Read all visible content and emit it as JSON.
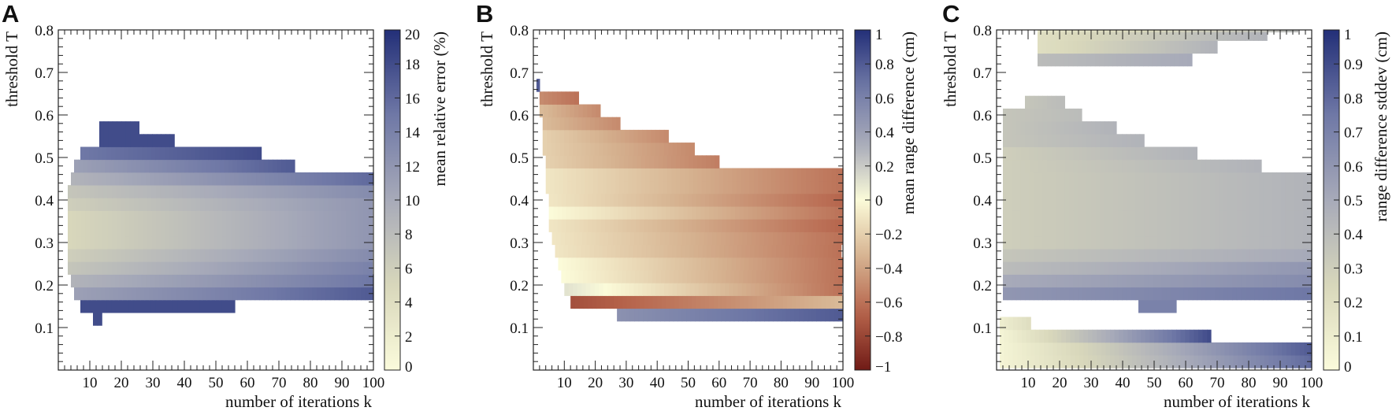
{
  "colors": {
    "sequential": [
      "#fbfbdb",
      "#d8d7bb",
      "#a7aab9",
      "#6f78a6",
      "#232f78"
    ],
    "diverging": [
      "#701b16",
      "#b5624a",
      "#d6b391",
      "#fbfbd9",
      "#a7aab9",
      "#6f78a6",
      "#232f78"
    ],
    "frame": "#222222"
  },
  "chart_data": [
    {
      "type": "heatmap",
      "panel": "A",
      "xlabel": "number of iterations k",
      "ylabel": "threshold T",
      "xlim": [
        0,
        100
      ],
      "ylim": [
        0,
        0.8
      ],
      "xticks": [
        10,
        20,
        30,
        40,
        50,
        60,
        70,
        80,
        90,
        100
      ],
      "yticks": [
        0.1,
        0.2,
        0.3,
        0.4,
        0.5,
        0.6,
        0.7,
        0.8
      ],
      "colorbar": {
        "label": "mean relative error (%)",
        "range": [
          0,
          20
        ],
        "ticks": [
          0,
          2,
          4,
          6,
          8,
          10,
          12,
          14,
          16,
          18,
          20
        ],
        "palette": "sequential"
      },
      "rows": [
        {
          "t": 0.12,
          "ranges": [
            [
              11,
              14
            ]
          ],
          "values": [
            18,
            18
          ]
        },
        {
          "t": 0.15,
          "ranges": [
            [
              7,
              56
            ]
          ],
          "values": [
            18,
            18
          ]
        },
        {
          "t": 0.18,
          "ranges": [
            [
              5,
              100
            ]
          ],
          "values": [
            11,
            17
          ]
        },
        {
          "t": 0.21,
          "ranges": [
            [
              4,
              100
            ]
          ],
          "values": [
            9,
            15
          ]
        },
        {
          "t": 0.24,
          "ranges": [
            [
              3,
              100
            ]
          ],
          "values": [
            7,
            14
          ]
        },
        {
          "t": 0.27,
          "ranges": [
            [
              3,
              100
            ]
          ],
          "values": [
            6,
            13
          ]
        },
        {
          "t": 0.3,
          "ranges": [
            [
              3,
              100
            ]
          ],
          "values": [
            5,
            12
          ]
        },
        {
          "t": 0.33,
          "ranges": [
            [
              3,
              100
            ]
          ],
          "values": [
            5,
            12
          ]
        },
        {
          "t": 0.36,
          "ranges": [
            [
              3,
              100
            ]
          ],
          "values": [
            5,
            12
          ]
        },
        {
          "t": 0.39,
          "ranges": [
            [
              3,
              100
            ]
          ],
          "values": [
            6,
            12
          ]
        },
        {
          "t": 0.42,
          "ranges": [
            [
              3,
              100
            ]
          ],
          "values": [
            7,
            13
          ]
        },
        {
          "t": 0.45,
          "ranges": [
            [
              4,
              100
            ]
          ],
          "values": [
            9,
            16
          ]
        },
        {
          "t": 0.48,
          "ranges": [
            [
              5,
              75
            ]
          ],
          "values": [
            11,
            17
          ]
        },
        {
          "t": 0.51,
          "ranges": [
            [
              7,
              65
            ]
          ],
          "values": [
            15,
            18
          ]
        },
        {
          "t": 0.54,
          "ranges": [
            [
              13,
              37
            ]
          ],
          "values": [
            18,
            18
          ]
        },
        {
          "t": 0.57,
          "ranges": [
            [
              13,
              26
            ]
          ],
          "values": [
            18,
            18
          ]
        }
      ]
    },
    {
      "type": "heatmap",
      "panel": "B",
      "xlabel": "number of iterations k",
      "ylabel": "threshold T",
      "xlim": [
        0,
        100
      ],
      "ylim": [
        0,
        0.8
      ],
      "xticks": [
        10,
        20,
        30,
        40,
        50,
        60,
        70,
        80,
        90,
        100
      ],
      "yticks": [
        0.1,
        0.2,
        0.3,
        0.4,
        0.5,
        0.6,
        0.7,
        0.8
      ],
      "colorbar": {
        "label": "mean range difference (cm)",
        "range": [
          -1,
          1
        ],
        "ticks": [
          -1,
          -0.8,
          -0.6,
          -0.4,
          -0.2,
          0,
          0.2,
          0.4,
          0.6,
          0.8,
          1
        ],
        "palette": "diverging"
      },
      "rows": [
        {
          "t": 0.13,
          "ranges": [
            [
              27,
              100
            ]
          ],
          "values": [
            0.5,
            0.8
          ]
        },
        {
          "t": 0.16,
          "ranges": [
            [
              12,
              100
            ]
          ],
          "values": [
            -0.75,
            -0.3
          ]
        },
        {
          "t": 0.19,
          "ranges": [
            [
              10,
              100
            ]
          ],
          "values": [
            0.1,
            -0.6
          ]
        },
        {
          "t": 0.22,
          "ranges": [
            [
              9,
              100
            ]
          ],
          "values": [
            0.0,
            -0.6
          ]
        },
        {
          "t": 0.25,
          "ranges": [
            [
              8,
              100
            ]
          ],
          "values": [
            0.0,
            -0.6
          ]
        },
        {
          "t": 0.28,
          "ranges": [
            [
              7,
              100
            ]
          ],
          "values": [
            -0.1,
            -0.6
          ]
        },
        {
          "t": 0.31,
          "ranges": [
            [
              6,
              100
            ]
          ],
          "values": [
            -0.1,
            -0.6
          ]
        },
        {
          "t": 0.34,
          "ranges": [
            [
              5,
              100
            ]
          ],
          "values": [
            -0.1,
            -0.65
          ]
        },
        {
          "t": 0.37,
          "ranges": [
            [
              5,
              100
            ]
          ],
          "values": [
            0.0,
            -0.6
          ]
        },
        {
          "t": 0.4,
          "ranges": [
            [
              5,
              100
            ]
          ],
          "values": [
            -0.1,
            -0.65
          ]
        },
        {
          "t": 0.43,
          "ranges": [
            [
              4,
              100
            ]
          ],
          "values": [
            -0.1,
            -0.6
          ]
        },
        {
          "t": 0.46,
          "ranges": [
            [
              4,
              100
            ]
          ],
          "values": [
            -0.1,
            -0.6
          ]
        },
        {
          "t": 0.49,
          "ranges": [
            [
              4,
              60
            ]
          ],
          "values": [
            -0.2,
            -0.55
          ]
        },
        {
          "t": 0.52,
          "ranges": [
            [
              3,
              52
            ]
          ],
          "values": [
            -0.2,
            -0.5
          ]
        },
        {
          "t": 0.55,
          "ranges": [
            [
              3,
              44
            ]
          ],
          "values": [
            -0.2,
            -0.5
          ]
        },
        {
          "t": 0.58,
          "ranges": [
            [
              3,
              28
            ]
          ],
          "values": [
            -0.3,
            -0.5
          ]
        },
        {
          "t": 0.61,
          "ranges": [
            [
              2,
              22
            ]
          ],
          "values": [
            -0.3,
            -0.5
          ]
        },
        {
          "t": 0.64,
          "ranges": [
            [
              2,
              15
            ]
          ],
          "values": [
            -0.5,
            -0.6
          ]
        },
        {
          "t": 0.67,
          "ranges": [
            [
              1,
              2
            ]
          ],
          "values": [
            0.8,
            0.8
          ]
        }
      ]
    },
    {
      "type": "heatmap",
      "panel": "C",
      "xlabel": "number of iterations k",
      "ylabel": "threshold T",
      "xlim": [
        0,
        100
      ],
      "ylim": [
        0,
        0.8
      ],
      "xticks": [
        10,
        20,
        30,
        40,
        50,
        60,
        70,
        80,
        90,
        100
      ],
      "yticks": [
        0.1,
        0.2,
        0.3,
        0.4,
        0.5,
        0.6,
        0.7,
        0.8
      ],
      "colorbar": {
        "label": "range difference stddev (cm)",
        "range": [
          0,
          1
        ],
        "ticks": [
          0,
          0.1,
          0.2,
          0.3,
          0.4,
          0.5,
          0.6,
          0.7,
          0.8,
          0.9,
          1
        ],
        "palette": "sequential"
      },
      "rows": [
        {
          "t": 0.02,
          "ranges": [
            [
              1,
              100
            ]
          ],
          "values": [
            0.05,
            0.8
          ]
        },
        {
          "t": 0.05,
          "ranges": [
            [
              1,
              100
            ]
          ],
          "values": [
            0.05,
            0.85
          ]
        },
        {
          "t": 0.08,
          "ranges": [
            [
              1,
              68
            ]
          ],
          "values": [
            0.05,
            0.9
          ]
        },
        {
          "t": 0.11,
          "ranges": [
            [
              1,
              11
            ]
          ],
          "values": [
            0.1,
            0.2
          ]
        },
        {
          "t": 0.15,
          "ranges": [
            [
              45,
              57
            ]
          ],
          "values": [
            0.7,
            0.7
          ]
        },
        {
          "t": 0.18,
          "ranges": [
            [
              2,
              100
            ]
          ],
          "values": [
            0.6,
            0.75
          ]
        },
        {
          "t": 0.21,
          "ranges": [
            [
              2,
              100
            ]
          ],
          "values": [
            0.5,
            0.65
          ]
        },
        {
          "t": 0.24,
          "ranges": [
            [
              2,
              100
            ]
          ],
          "values": [
            0.4,
            0.6
          ]
        },
        {
          "t": 0.27,
          "ranges": [
            [
              2,
              100
            ]
          ],
          "values": [
            0.35,
            0.5
          ]
        },
        {
          "t": 0.3,
          "ranges": [
            [
              2,
              100
            ]
          ],
          "values": [
            0.3,
            0.45
          ]
        },
        {
          "t": 0.33,
          "ranges": [
            [
              2,
              100
            ]
          ],
          "values": [
            0.3,
            0.45
          ]
        },
        {
          "t": 0.36,
          "ranges": [
            [
              2,
              100
            ]
          ],
          "values": [
            0.3,
            0.45
          ]
        },
        {
          "t": 0.39,
          "ranges": [
            [
              2,
              100
            ]
          ],
          "values": [
            0.3,
            0.45
          ]
        },
        {
          "t": 0.42,
          "ranges": [
            [
              2,
              100
            ]
          ],
          "values": [
            0.3,
            0.45
          ]
        },
        {
          "t": 0.45,
          "ranges": [
            [
              2,
              100
            ]
          ],
          "values": [
            0.3,
            0.45
          ]
        },
        {
          "t": 0.48,
          "ranges": [
            [
              2,
              84
            ]
          ],
          "values": [
            0.3,
            0.45
          ]
        },
        {
          "t": 0.51,
          "ranges": [
            [
              2,
              64
            ]
          ],
          "values": [
            0.3,
            0.45
          ]
        },
        {
          "t": 0.54,
          "ranges": [
            [
              2,
              47
            ]
          ],
          "values": [
            0.35,
            0.45
          ]
        },
        {
          "t": 0.57,
          "ranges": [
            [
              2,
              38
            ]
          ],
          "values": [
            0.35,
            0.45
          ]
        },
        {
          "t": 0.6,
          "ranges": [
            [
              2,
              27
            ]
          ],
          "values": [
            0.35,
            0.4
          ]
        },
        {
          "t": 0.63,
          "ranges": [
            [
              9,
              22
            ]
          ],
          "values": [
            0.35,
            0.4
          ]
        },
        {
          "t": 0.73,
          "ranges": [
            [
              13,
              62
            ]
          ],
          "values": [
            0.4,
            0.5
          ]
        },
        {
          "t": 0.76,
          "ranges": [
            [
              13,
              70
            ]
          ],
          "values": [
            0.2,
            0.45
          ]
        },
        {
          "t": 0.79,
          "ranges": [
            [
              13,
              86
            ]
          ],
          "values": [
            0.2,
            0.45
          ]
        },
        {
          "t": 0.81,
          "ranges": [
            [
              13,
              96
            ]
          ],
          "values": [
            0.15,
            0.4
          ]
        }
      ]
    }
  ]
}
